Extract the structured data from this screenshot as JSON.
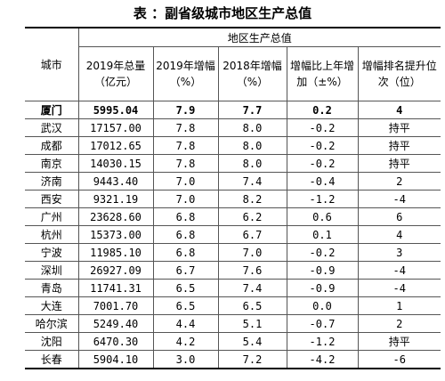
{
  "header": {
    "title": "表 ：副省级城市地区生产总值"
  },
  "table": {
    "city_header": "城市",
    "group_header": "地区生产总值",
    "columns": [
      "2019年总量（亿元）",
      "2019年增幅（%）",
      "2018年增幅（%）",
      "增幅比上年增加（±%）",
      "增幅排名提升位次（位）"
    ],
    "rows": [
      [
        "厦门",
        "5995.04",
        "7.9",
        "7.7",
        "0.2",
        "4"
      ],
      [
        "武汉",
        "17157.00",
        "7.8",
        "8.0",
        "-0.2",
        "持平"
      ],
      [
        "成都",
        "17012.65",
        "7.8",
        "8.0",
        "-0.2",
        "持平"
      ],
      [
        "南京",
        "14030.15",
        "7.8",
        "8.0",
        "-0.2",
        "持平"
      ],
      [
        "济南",
        "9443.40",
        "7.0",
        "7.4",
        "-0.4",
        "2"
      ],
      [
        "西安",
        "9321.19",
        "7.0",
        "8.2",
        "-1.2",
        "-4"
      ],
      [
        "广州",
        "23628.60",
        "6.8",
        "6.2",
        "0.6",
        "6"
      ],
      [
        "杭州",
        "15373.00",
        "6.8",
        "6.7",
        "0.1",
        "4"
      ],
      [
        "宁波",
        "11985.10",
        "6.8",
        "7.0",
        "-0.2",
        "3"
      ],
      [
        "深圳",
        "26927.09",
        "6.7",
        "7.6",
        "-0.9",
        "-4"
      ],
      [
        "青岛",
        "11741.31",
        "6.5",
        "7.4",
        "-0.9",
        "-4"
      ],
      [
        "大连",
        "7001.70",
        "6.5",
        "6.5",
        "0.0",
        "1"
      ],
      [
        "哈尔滨",
        "5249.40",
        "4.4",
        "5.1",
        "-0.7",
        "2"
      ],
      [
        "沈阳",
        "6470.30",
        "4.2",
        "5.4",
        "-1.2",
        "持平"
      ],
      [
        "长春",
        "5904.10",
        "3.0",
        "7.2",
        "-4.2",
        "-6"
      ]
    ]
  }
}
